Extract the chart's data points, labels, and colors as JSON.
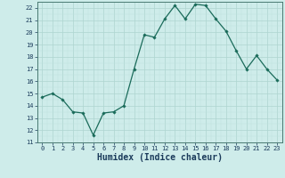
{
  "x": [
    0,
    1,
    2,
    3,
    4,
    5,
    6,
    7,
    8,
    9,
    10,
    11,
    12,
    13,
    14,
    15,
    16,
    17,
    18,
    19,
    20,
    21,
    22,
    23
  ],
  "y": [
    14.7,
    15.0,
    14.5,
    13.5,
    13.4,
    11.6,
    13.4,
    13.5,
    14.0,
    17.0,
    19.8,
    19.6,
    21.1,
    22.2,
    21.1,
    22.3,
    22.2,
    21.1,
    20.1,
    18.5,
    17.0,
    18.1,
    17.0,
    16.1
  ],
  "line_color": "#1a6b5a",
  "marker": "D",
  "marker_size": 1.8,
  "bg_color": "#ceecea",
  "grid_major_color": "#aed4d0",
  "grid_minor_color": "#bde0dc",
  "xlabel": "Humidex (Indice chaleur)",
  "xlabel_fontsize": 7,
  "xlabel_color": "#1a3a5a",
  "tick_label_color": "#1a3a5a",
  "ylim": [
    11,
    22.5
  ],
  "xlim": [
    -0.5,
    23.5
  ],
  "yticks": [
    11,
    12,
    13,
    14,
    15,
    16,
    17,
    18,
    19,
    20,
    21,
    22
  ],
  "xticks": [
    0,
    1,
    2,
    3,
    4,
    5,
    6,
    7,
    8,
    9,
    10,
    11,
    12,
    13,
    14,
    15,
    16,
    17,
    18,
    19,
    20,
    21,
    22,
    23
  ],
  "tick_fontsize": 5.0,
  "linewidth": 0.9
}
